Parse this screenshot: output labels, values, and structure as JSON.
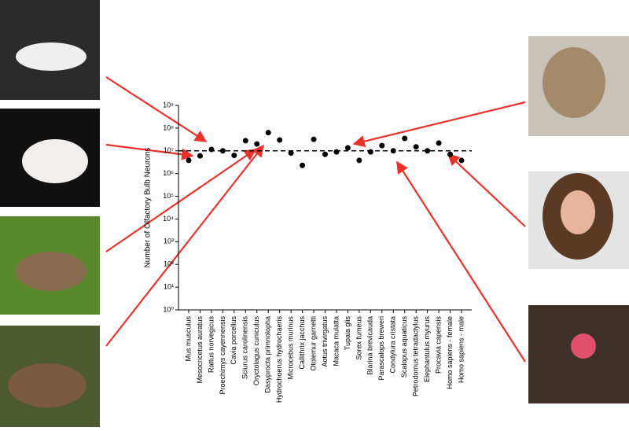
{
  "chart_data": {
    "type": "scatter",
    "y_label": "Number of Olfactory Bulb Neurons",
    "categories": [
      "Mus musculus",
      "Mesocricetus auratus",
      "Rattus norvegicus",
      "Proechimys cayennensis",
      "Cavia porcellus",
      "Sciurus carolinensis",
      "Oryctolagus cuniculus",
      "Dasyprocta primnolopha",
      "Hydrochoerus hydrochaeris",
      "Microcebus murinus",
      "Callithrix jacchus",
      "Otolemur garnetti",
      "Aotus trivirgatus",
      "Macaca mulatta",
      "Tupaia glis",
      "Sorex fumeus",
      "Blarina brevicauda",
      "Parascalops breweri",
      "Condylura cristata",
      "Scalopus aquaticus",
      "Petrodomus tetradactylus",
      "Elephantulus myurus",
      "Procavia capensis",
      "Homo sapiens - female",
      "Homo sapiens - male"
    ],
    "values": [
      3800000,
      6000000,
      11500000,
      10000000,
      6300000,
      28000000,
      20000000,
      63000000,
      30000000,
      8000000,
      2300000,
      32000000,
      7000000,
      9000000,
      13500000,
      3800000,
      9000000,
      17000000,
      10000000,
      35000000,
      15000000,
      10000000,
      22000000,
      7000000,
      3800000
    ],
    "color": "#000000",
    "log_scale": true,
    "ylim": [
      1,
      1000000000
    ],
    "yticks": [
      {
        "value": 1,
        "label": "10⁰"
      },
      {
        "value": 10,
        "label": "10¹"
      },
      {
        "value": 100,
        "label": "10²"
      },
      {
        "value": 1000,
        "label": "10³"
      },
      {
        "value": 10000,
        "label": "10⁴"
      },
      {
        "value": 100000,
        "label": "10⁵"
      },
      {
        "value": 1000000,
        "label": "10⁶"
      },
      {
        "value": 10000000,
        "label": "10⁷"
      },
      {
        "value": 100000000,
        "label": "10⁸"
      },
      {
        "value": 1000000000,
        "label": "10⁹"
      }
    ],
    "reference_line": 10000000
  }
}
